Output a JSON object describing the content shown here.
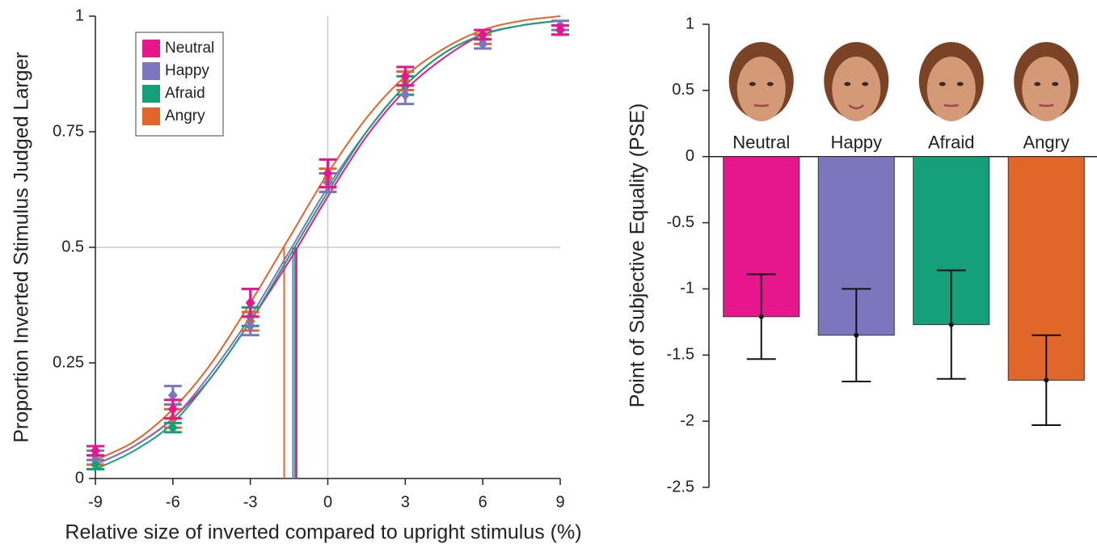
{
  "chart_data": [
    {
      "type": "line",
      "x_label": "Relative size of inverted compared to upright stimulus (%)",
      "y_label": "Proportion Inverted Stimulus Judged Larger",
      "xlim": [
        -9,
        9
      ],
      "xticks": [
        -9,
        -6,
        -3,
        0,
        3,
        6,
        9
      ],
      "ylim": [
        0,
        1
      ],
      "yticks": [
        0,
        0.25,
        0.5,
        0.75,
        1
      ],
      "legend": "upper left",
      "x": [
        -9,
        -6,
        -3,
        0,
        3,
        6,
        9
      ],
      "fit_x": [
        -9,
        -7.5,
        -6,
        -4.5,
        -3,
        -1.5,
        0,
        1.5,
        3,
        4.5,
        6,
        7.5,
        9
      ],
      "series": [
        {
          "name": "Neutral",
          "color": "#e8168c",
          "values": [
            0.06,
            0.15,
            0.38,
            0.66,
            0.87,
            0.96,
            0.97
          ],
          "errors": [
            0.01,
            0.02,
            0.03,
            0.03,
            0.02,
            0.01,
            0.01
          ],
          "fit": [
            0.03,
            0.07,
            0.13,
            0.22,
            0.34,
            0.47,
            0.61,
            0.74,
            0.84,
            0.91,
            0.96,
            0.98,
            0.99
          ]
        },
        {
          "name": "Happy",
          "color": "#7b76bd",
          "values": [
            0.05,
            0.18,
            0.33,
            0.64,
            0.83,
            0.94,
            0.98
          ],
          "errors": [
            0.01,
            0.02,
            0.02,
            0.02,
            0.02,
            0.01,
            0.01
          ],
          "fit": [
            0.03,
            0.07,
            0.13,
            0.23,
            0.35,
            0.49,
            0.63,
            0.75,
            0.85,
            0.92,
            0.96,
            0.98,
            0.99
          ]
        },
        {
          "name": "Afraid",
          "color": "#16a079",
          "values": [
            0.03,
            0.11,
            0.35,
            0.64,
            0.85,
            0.94,
            0.97
          ],
          "errors": [
            0.01,
            0.01,
            0.02,
            0.02,
            0.02,
            0.01,
            0.01
          ],
          "fit": [
            0.02,
            0.06,
            0.12,
            0.22,
            0.34,
            0.48,
            0.62,
            0.75,
            0.85,
            0.92,
            0.96,
            0.98,
            0.99
          ]
        },
        {
          "name": "Angry",
          "color": "#e0662a",
          "values": [
            0.04,
            0.13,
            0.34,
            0.65,
            0.86,
            0.95,
            0.97
          ],
          "errors": [
            0.01,
            0.02,
            0.02,
            0.02,
            0.02,
            0.01,
            0.01
          ],
          "fit": [
            0.04,
            0.08,
            0.15,
            0.25,
            0.38,
            0.52,
            0.66,
            0.78,
            0.87,
            0.93,
            0.97,
            0.99,
            1.0
          ]
        }
      ]
    },
    {
      "type": "bar",
      "y_label": "Point of Subjective Equality (PSE)",
      "categories": [
        "Neutral",
        "Happy",
        "Afraid",
        "Angry"
      ],
      "values": [
        -1.21,
        -1.35,
        -1.27,
        -1.69
      ],
      "errors": [
        0.32,
        0.35,
        0.41,
        0.34
      ],
      "colors": [
        "#e8168c",
        "#7b76bd",
        "#16a079",
        "#e0662a"
      ],
      "ylim": [
        -2.5,
        1
      ],
      "yticks": [
        -2.5,
        -2,
        -1.5,
        -1,
        -0.5,
        0,
        0.5,
        1
      ]
    }
  ]
}
